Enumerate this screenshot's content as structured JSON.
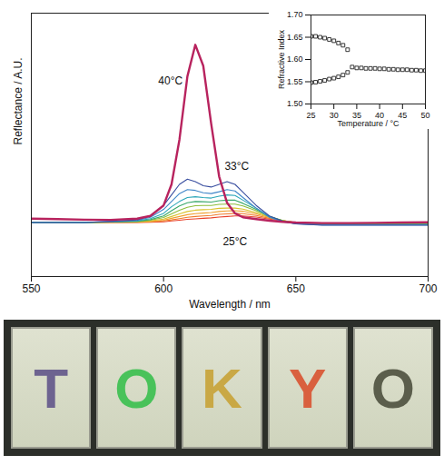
{
  "chart_data": [
    {
      "type": "line",
      "xlabel": "Wavelength / nm",
      "ylabel": "Reflectance / A.U.",
      "x": [
        550,
        560,
        570,
        580,
        590,
        595,
        600,
        603,
        606,
        609,
        612,
        615,
        618,
        621,
        624,
        627,
        630,
        635,
        640,
        645,
        650,
        660,
        670,
        680,
        690,
        700
      ],
      "xlim": [
        550,
        700
      ],
      "xticks": [
        550,
        600,
        650,
        700
      ],
      "ylim": [
        0,
        100
      ],
      "tick_labels": "x",
      "series": [
        {
          "name": "40°C",
          "color": "#b8235e",
          "values": [
            22,
            21.8,
            21.6,
            21.5,
            22,
            23,
            27,
            35,
            52,
            76,
            88,
            80,
            58,
            38,
            28,
            24,
            22.5,
            21.8,
            21.2,
            20.8,
            20.5,
            20.3,
            20.3,
            20.4,
            20.5,
            20.6
          ]
        },
        {
          "name": "33°C",
          "color": "#3a4fa0",
          "values": [
            20.5,
            20.5,
            20.5,
            21,
            21.5,
            23,
            27,
            31,
            35,
            37,
            36,
            34.5,
            34,
            35,
            36,
            35,
            32,
            27,
            23,
            21,
            20,
            19.5,
            19.5,
            19.5,
            19.5,
            19.5
          ]
        },
        {
          "color": "#3f86c8",
          "values": [
            20.5,
            20.5,
            20.5,
            20.9,
            21.3,
            22.5,
            25.5,
            28.5,
            31.5,
            33,
            32.7,
            31.8,
            31.5,
            32.2,
            33,
            32.5,
            30,
            26,
            22.5,
            20.8,
            20,
            19.6,
            19.6,
            19.6,
            19.6,
            19.6
          ]
        },
        {
          "color": "#2aa6b8",
          "values": [
            20.5,
            20.5,
            20.5,
            20.8,
            21.1,
            22,
            24,
            26.5,
            28.5,
            30,
            30.3,
            30,
            29.8,
            30.5,
            31,
            30.8,
            29,
            26,
            22.8,
            21,
            20.1,
            19.7,
            19.7,
            19.7,
            19.7,
            19.7
          ]
        },
        {
          "color": "#3aa86a",
          "values": [
            20.5,
            20.5,
            20.5,
            20.7,
            21,
            21.6,
            23,
            25,
            26.8,
            28,
            28.5,
            28.4,
            28.3,
            28.8,
            29,
            29,
            27.8,
            25.5,
            22.8,
            21.2,
            20.2,
            19.8,
            19.8,
            19.8,
            19.8,
            19.8
          ]
        },
        {
          "color": "#8cbd3a",
          "values": [
            20.5,
            20.5,
            20.5,
            20.7,
            20.9,
            21.4,
            22.4,
            23.8,
            25.2,
            26.3,
            26.9,
            27,
            27,
            27.4,
            27.5,
            27.5,
            26.8,
            25,
            22.8,
            21.3,
            20.3,
            19.9,
            19.9,
            19.9,
            19.9,
            19.9
          ]
        },
        {
          "color": "#d9c22a",
          "values": [
            20.5,
            20.5,
            20.5,
            20.6,
            20.8,
            21.1,
            21.8,
            22.8,
            23.8,
            24.7,
            25.2,
            25.4,
            25.5,
            25.9,
            26,
            26,
            25.6,
            24.3,
            22.6,
            21.3,
            20.4,
            20,
            20,
            20,
            20,
            20
          ]
        },
        {
          "color": "#f0a030",
          "values": [
            20.5,
            20.5,
            20.5,
            20.6,
            20.7,
            20.9,
            21.4,
            22.1,
            22.8,
            23.5,
            23.9,
            24.1,
            24.3,
            24.7,
            24.9,
            25,
            24.8,
            23.8,
            22.4,
            21.3,
            20.5,
            20.1,
            20.1,
            20.1,
            20.1,
            20.1
          ]
        },
        {
          "color": "#f07a2a",
          "values": [
            20.5,
            20.5,
            20.5,
            20.5,
            20.6,
            20.8,
            21.1,
            21.5,
            22,
            22.5,
            22.8,
            23,
            23.2,
            23.6,
            23.8,
            24,
            23.9,
            23.2,
            22.1,
            21.2,
            20.5,
            20.2,
            20.2,
            20.2,
            20.2,
            20.2
          ]
        },
        {
          "name": "25°C",
          "color": "#e8402a",
          "values": [
            20.5,
            20.5,
            20.5,
            20.5,
            20.5,
            20.6,
            20.8,
            21.1,
            21.4,
            21.7,
            21.9,
            22.1,
            22.3,
            22.6,
            22.8,
            23,
            23,
            22.6,
            21.8,
            21.1,
            20.5,
            20.3,
            20.3,
            20.3,
            20.3,
            20.3
          ]
        }
      ]
    },
    {
      "type": "scatter",
      "xlabel": "Temperature / °C",
      "ylabel": "Refractive Index",
      "marker": "square",
      "x": [
        25,
        26,
        27,
        28,
        29,
        30,
        31,
        32,
        33,
        34,
        35,
        36,
        37,
        38,
        39,
        40,
        41,
        42,
        43,
        44,
        45,
        46,
        47,
        48,
        49,
        50
      ],
      "xlim": [
        25,
        50
      ],
      "xticks": [
        25,
        30,
        35,
        40,
        45,
        50
      ],
      "ylim": [
        1.5,
        1.7
      ],
      "yticks": [
        {
          "value": 1.5,
          "label": "1.50"
        },
        1.55,
        {
          "value": 1.6,
          "label": "1.60"
        },
        1.65,
        {
          "value": 1.7,
          "label": "1.70"
        }
      ],
      "series": [
        {
          "color": "#222222",
          "values": [
            1.652,
            1.652,
            1.65,
            1.648,
            1.645,
            1.642,
            1.637,
            1.632,
            1.622,
            1.583,
            1.581,
            1.581,
            1.58,
            1.58,
            1.58,
            1.579,
            1.579,
            1.578,
            1.578,
            1.577,
            1.577,
            1.577,
            1.576,
            1.576,
            1.575,
            1.575
          ]
        },
        {
          "color": "#222222",
          "values": [
            1.548,
            1.549,
            1.551,
            1.553,
            1.556,
            1.558,
            1.561,
            1.565,
            1.571,
            null,
            null,
            null,
            null,
            null,
            null,
            null,
            null,
            null,
            null,
            null,
            null,
            null,
            null,
            null,
            null,
            null
          ]
        }
      ]
    }
  ],
  "photo": {
    "tiles": [
      {
        "text": "T",
        "color": "#6d6390"
      },
      {
        "text": "O",
        "color": "#49c25a"
      },
      {
        "text": "K",
        "color": "#c9a845"
      },
      {
        "text": "Y",
        "color": "#d9603f"
      },
      {
        "text": "O",
        "color": "#5b5e4c"
      }
    ]
  }
}
